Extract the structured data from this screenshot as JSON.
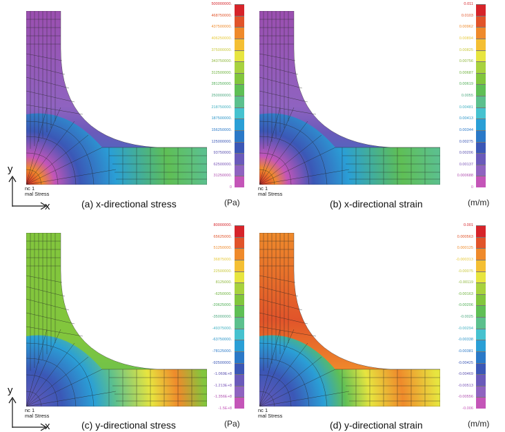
{
  "colors": {
    "scale": [
      "#c455b8",
      "#8f63c0",
      "#6a5aba",
      "#3b57b6",
      "#2a79c8",
      "#2a9fd6",
      "#46c2cf",
      "#5cc08d",
      "#5fbf55",
      "#82c63d",
      "#a8d23e",
      "#e7e53f",
      "#f4bf33",
      "#ef8a2b",
      "#e1542a",
      "#d6242a"
    ]
  },
  "panels": [
    {
      "caption": "(a) x-directional stress",
      "unit": "(Pa)",
      "legend_line1": "nc 1",
      "legend_line2": "mal Stress",
      "ticks": [
        "500000000.",
        "468750000.",
        "437500000.",
        "406250000.",
        "375000000.",
        "343750000.",
        "312500000.",
        "281250000.",
        "250000000.",
        "218750000.",
        "187500000.",
        "156250000.",
        "125000000.",
        "93750000.",
        "62500000.",
        "31250000.",
        "0"
      ],
      "axis_y": "y",
      "axis_x": "x"
    },
    {
      "caption": "(b) x-directional strain",
      "unit": "(m/m)",
      "legend_line1": "nc 1",
      "legend_line2": "mal Stress",
      "ticks": [
        "0.011",
        "0.0103",
        "0.00962",
        "0.00894",
        "0.00825",
        "0.00756",
        "0.00687",
        "0.00619",
        "0.0055",
        "0.00481",
        "0.00413",
        "0.00344",
        "0.00275",
        "0.00206",
        "0.00137",
        "0.000688",
        "0"
      ]
    },
    {
      "caption": "(c) y-directional stress",
      "unit": "(Pa)",
      "legend_line1": "nc 1",
      "legend_line2": "mal Stress",
      "ticks": [
        "80000000.",
        "65625000.",
        "51250000.",
        "36875000.",
        "22500000.",
        "8125000.",
        "-6250000.",
        "-20625000.",
        "-35000000.",
        "-49375000.",
        "-63750000.",
        "-78125000.",
        "-92500000.",
        "-1.069E+8",
        "-1.213E+8",
        "-1.356E+8",
        "-1.5E+8"
      ],
      "axis_y": "y",
      "axis_x": "x"
    },
    {
      "caption": "(d) y-directional strain",
      "unit": "(m/m)",
      "legend_line1": "nc 1",
      "legend_line2": "mal Stress",
      "ticks": [
        "0.001",
        "0.000563",
        "0.000125",
        "-0.000313",
        "-0.00075",
        "-0.00119",
        "-0.00163",
        "-0.00206",
        "-0.0025",
        "-0.00294",
        "-0.00338",
        "-0.00381",
        "-0.00425",
        "-0.00469",
        "-0.00513",
        "-0.00556",
        "-0.006"
      ]
    }
  ]
}
